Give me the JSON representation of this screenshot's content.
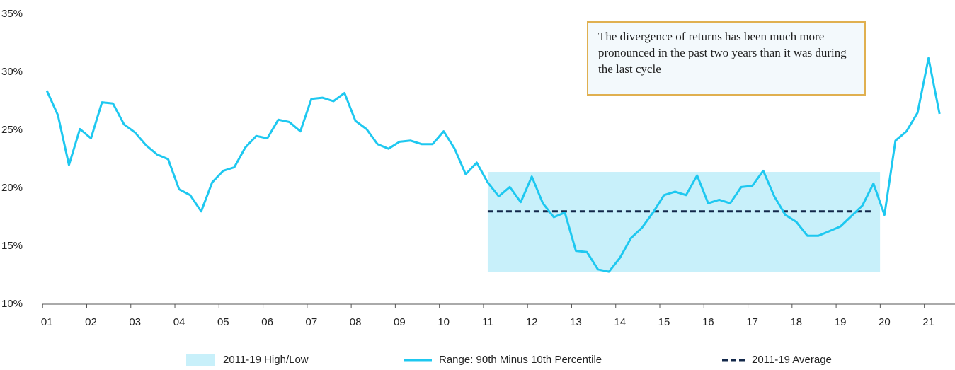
{
  "chart_data": {
    "type": "line",
    "x": [
      1,
      1.25,
      1.5,
      1.75,
      2,
      2.25,
      2.5,
      2.75,
      3,
      3.25,
      3.5,
      3.75,
      4,
      4.25,
      4.5,
      4.75,
      5,
      5.25,
      5.5,
      5.75,
      6,
      6.25,
      6.5,
      6.75,
      7,
      7.25,
      7.5,
      7.75,
      8,
      8.25,
      8.5,
      8.75,
      9,
      9.25,
      9.5,
      9.75,
      10,
      10.25,
      10.5,
      10.75,
      11,
      11.25,
      11.5,
      11.75,
      12,
      12.25,
      12.5,
      12.75,
      13,
      13.25,
      13.5,
      13.75,
      14,
      14.25,
      14.5,
      14.75,
      15,
      15.25,
      15.5,
      15.75,
      16,
      16.25,
      16.5,
      16.75,
      17,
      17.25,
      17.5,
      17.75,
      18,
      18.25,
      18.5,
      18.75,
      19,
      19.25,
      19.5,
      19.75,
      20,
      20.25,
      20.5,
      20.75,
      21,
      21.25
    ],
    "series": [
      {
        "name": "Range: 90th Minus 10th Percentile",
        "color": "#1ec8f0",
        "values": [
          28.4,
          26.3,
          22.0,
          25.1,
          24.3,
          27.4,
          27.3,
          25.5,
          24.8,
          23.7,
          22.9,
          22.5,
          19.9,
          19.4,
          18.0,
          20.5,
          21.5,
          21.8,
          23.5,
          24.5,
          24.3,
          25.9,
          25.7,
          24.9,
          27.7,
          27.8,
          27.5,
          28.2,
          25.8,
          25.1,
          23.8,
          23.4,
          24.0,
          24.1,
          23.8,
          23.8,
          24.9,
          23.4,
          21.2,
          22.2,
          20.5,
          19.3,
          20.1,
          18.8,
          21.0,
          18.7,
          17.5,
          17.9,
          14.6,
          14.5,
          13.0,
          12.8,
          14.0,
          15.7,
          16.6,
          17.9,
          19.4,
          19.7,
          19.4,
          21.1,
          18.7,
          19.0,
          18.7,
          20.1,
          20.2,
          21.5,
          19.3,
          17.7,
          17.1,
          15.9,
          15.9,
          16.3,
          16.7,
          17.6,
          18.5,
          20.4,
          17.7,
          24.1,
          24.9,
          26.5,
          31.2,
          26.4
        ]
      }
    ],
    "band": {
      "name": "2011-19 High/Low",
      "color": "#c8f0fa",
      "x": [
        11,
        19.9
      ],
      "values": [
        12.8,
        21.4
      ]
    },
    "average": {
      "name": "2011-19 Average",
      "color": "#13284a",
      "x": [
        11,
        19.75
      ],
      "value": 18.0
    },
    "annotation": "The divergence of returns has been much more pronounced in the past two years than it was during the last cycle",
    "xlim": [
      0.9,
      21.6
    ],
    "ylim": [
      10,
      35
    ],
    "xticks": [
      {
        "value": 1,
        "label": "01"
      },
      {
        "value": 2,
        "label": "02"
      },
      {
        "value": 3,
        "label": "03"
      },
      {
        "value": 4,
        "label": "04"
      },
      {
        "value": 5,
        "label": "05"
      },
      {
        "value": 6,
        "label": "06"
      },
      {
        "value": 7,
        "label": "07"
      },
      {
        "value": 8,
        "label": "08"
      },
      {
        "value": 9,
        "label": "09"
      },
      10,
      11,
      12,
      13,
      14,
      15,
      16,
      17,
      18,
      19,
      20,
      21
    ],
    "yticks": [
      {
        "value": 10,
        "label": "10%"
      },
      {
        "value": 15,
        "label": "15%"
      },
      {
        "value": 20,
        "label": "20%"
      },
      {
        "value": 25,
        "label": "25%"
      },
      {
        "value": 30,
        "label": "30%"
      },
      {
        "value": 35,
        "label": "35%"
      }
    ]
  }
}
